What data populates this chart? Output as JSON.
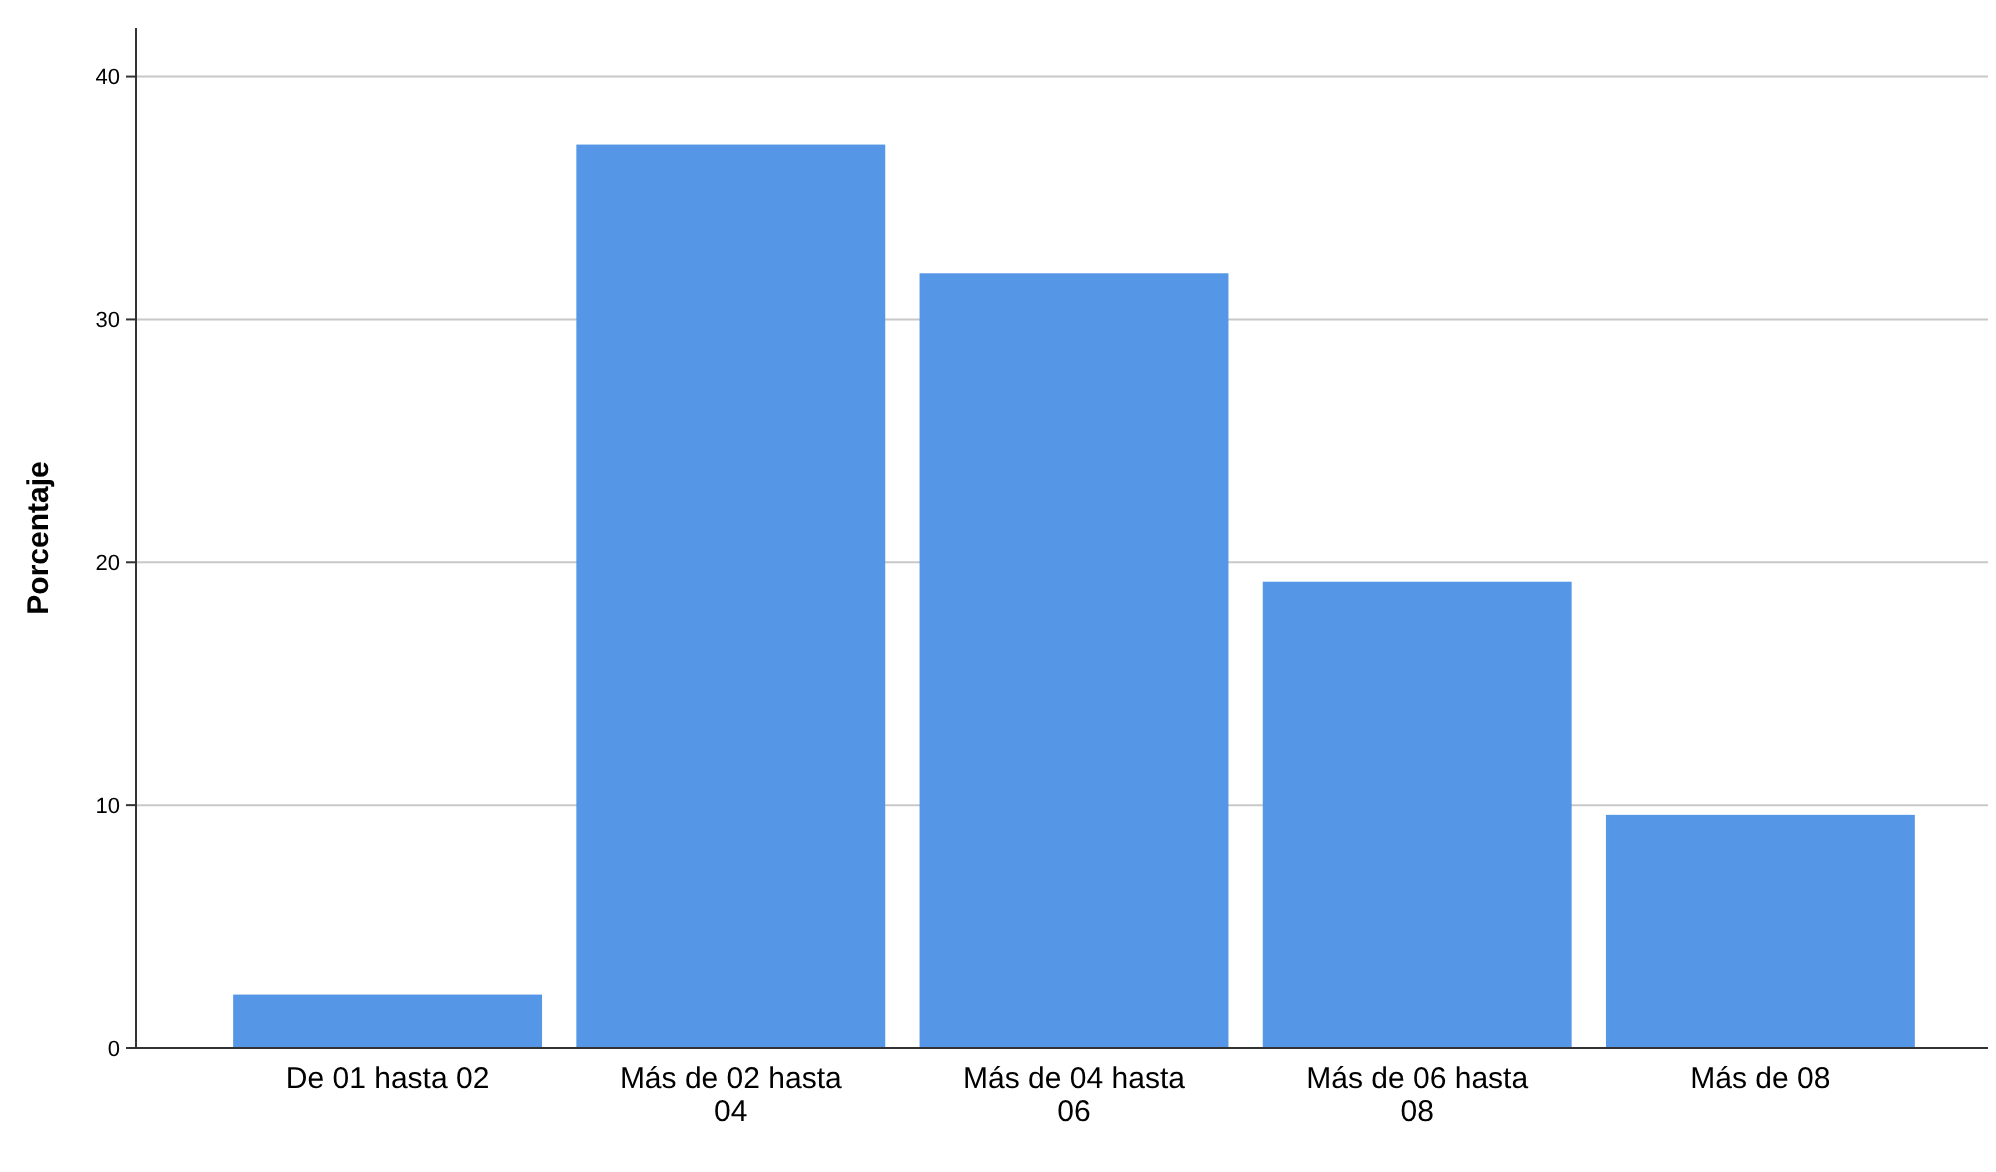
{
  "chart_data": {
    "type": "bar",
    "ylabel": "Porcentaje",
    "categories": [
      "De 01 hasta 02",
      "Más de 02 hasta 04",
      "Más de 04 hasta 06",
      "Más de 06 hasta 08",
      "Más de 08"
    ],
    "values": [
      2.2,
      37.2,
      31.9,
      19.2,
      9.6
    ],
    "color": "#5596e6",
    "ylim": [
      0,
      42
    ],
    "yticks": [
      0,
      10,
      20,
      30,
      40
    ],
    "grid": "y"
  }
}
